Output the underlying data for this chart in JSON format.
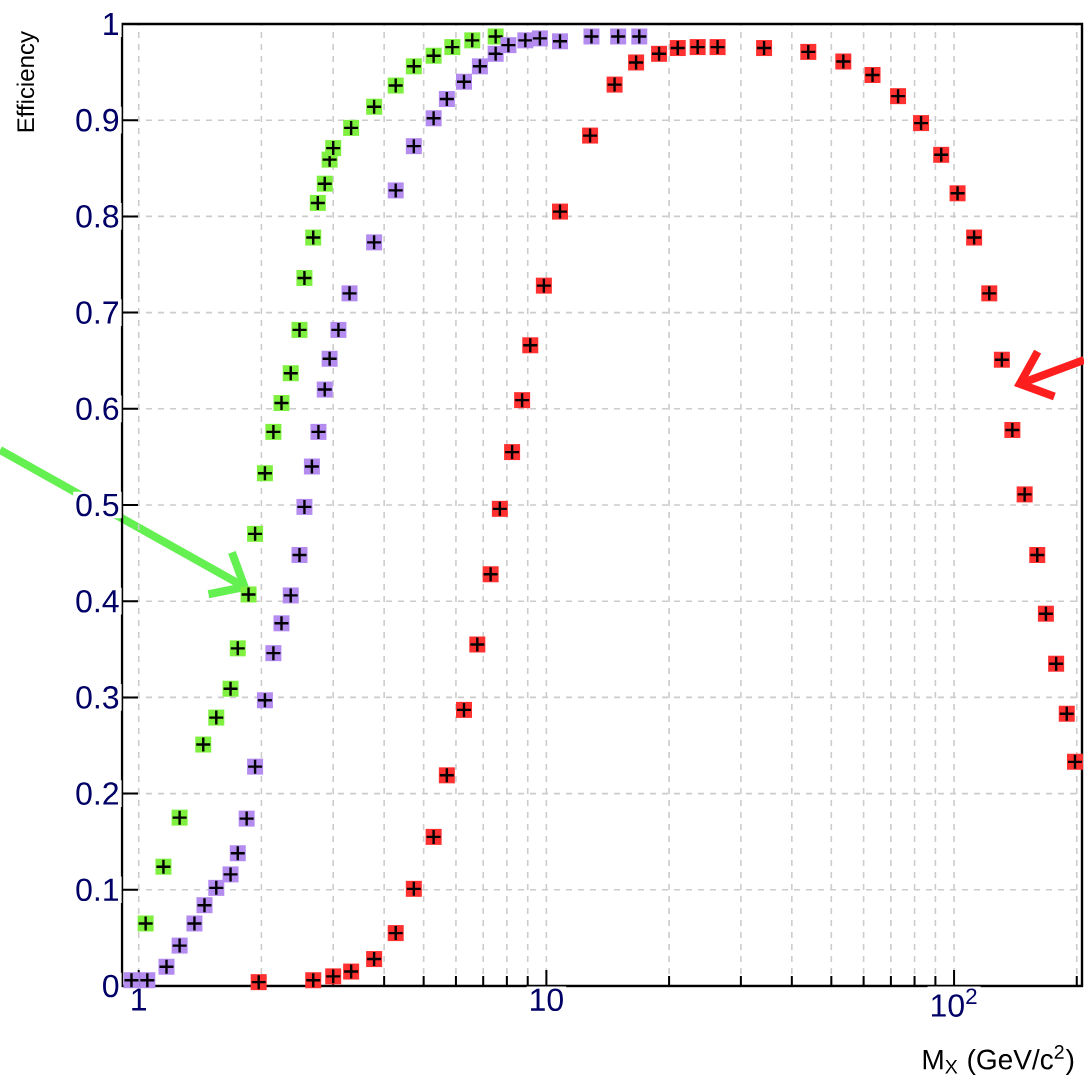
{
  "chart_data": {
    "type": "scatter",
    "xlabel": "M$_{X}$ (GeV/c$^{2}$)",
    "ylabel": "Efficiency",
    "log": "x",
    "grid": true,
    "marker": "square",
    "xlim": [
      0.91,
      206
    ],
    "ylim": [
      0,
      1
    ],
    "xticks": [
      1,
      {
        "value": 2,
        "label": null
      },
      {
        "value": 3,
        "label": null
      },
      {
        "value": 4,
        "label": null
      },
      {
        "value": 5,
        "label": null
      },
      {
        "value": 6,
        "label": null
      },
      {
        "value": 7,
        "label": null
      },
      {
        "value": 8,
        "label": null
      },
      {
        "value": 9,
        "label": null
      },
      10,
      {
        "value": 20,
        "label": null
      },
      {
        "value": 30,
        "label": null
      },
      {
        "value": 40,
        "label": null
      },
      {
        "value": 50,
        "label": null
      },
      {
        "value": 60,
        "label": null
      },
      {
        "value": 70,
        "label": null
      },
      {
        "value": 80,
        "label": null
      },
      {
        "value": 90,
        "label": null
      },
      {
        "value": 100,
        "label": "10$^{2}$"
      },
      {
        "value": 200,
        "label": null
      }
    ],
    "yticks": [
      0,
      0.1,
      0.2,
      0.3,
      0.4,
      0.5,
      0.6,
      0.7,
      0.8,
      0.9,
      1
    ],
    "series": [
      {
        "color": "#80f040",
        "x": [
          1.04,
          1.15,
          1.26,
          1.44,
          1.55,
          1.68,
          1.75,
          1.86,
          1.93,
          2.04,
          2.14,
          2.24,
          2.36,
          2.48,
          2.55,
          2.68,
          2.75,
          2.86,
          2.94,
          3.0,
          3.32,
          3.78,
          4.27,
          4.73,
          5.29,
          5.88,
          6.58,
          7.51
        ],
        "values": [
          0.065,
          0.124,
          0.175,
          0.251,
          0.279,
          0.309,
          0.351,
          0.407,
          0.47,
          0.533,
          0.576,
          0.606,
          0.637,
          0.682,
          0.736,
          0.778,
          0.814,
          0.834,
          0.859,
          0.871,
          0.892,
          0.914,
          0.936,
          0.956,
          0.967,
          0.976,
          0.983,
          0.987
        ]
      },
      {
        "color": "#b48cf0",
        "x": [
          0.96,
          1.05,
          1.17,
          1.26,
          1.37,
          1.45,
          1.55,
          1.68,
          1.75,
          1.84,
          1.93,
          2.04,
          2.14,
          2.24,
          2.36,
          2.48,
          2.55,
          2.66,
          2.76,
          2.86,
          2.94,
          3.09,
          3.29,
          3.78,
          4.27,
          4.73,
          5.29,
          5.7,
          6.28,
          6.87,
          7.51,
          8.07,
          8.88,
          9.64,
          10.8,
          12.9,
          15.0,
          16.9
        ],
        "values": [
          0.006,
          0.006,
          0.02,
          0.042,
          0.065,
          0.084,
          0.102,
          0.116,
          0.138,
          0.174,
          0.228,
          0.297,
          0.346,
          0.377,
          0.406,
          0.448,
          0.498,
          0.54,
          0.576,
          0.62,
          0.652,
          0.682,
          0.72,
          0.773,
          0.827,
          0.873,
          0.902,
          0.922,
          0.94,
          0.956,
          0.969,
          0.978,
          0.983,
          0.985,
          0.982,
          0.987,
          0.987,
          0.987
        ]
      },
      {
        "color": "#ff3030",
        "x": [
          1.97,
          2.68,
          3.0,
          3.32,
          3.78,
          4.27,
          4.73,
          5.29,
          5.7,
          6.28,
          6.77,
          7.3,
          7.69,
          8.24,
          8.72,
          9.13,
          9.86,
          10.8,
          12.8,
          14.7,
          16.6,
          18.9,
          21.0,
          23.5,
          26.3,
          34.2,
          43.9,
          53.5,
          63.1,
          72.9,
          83.0,
          93.0,
          102,
          112,
          122,
          131,
          139,
          149,
          160,
          168,
          178,
          189,
          198
        ],
        "values": [
          0.004,
          0.006,
          0.01,
          0.015,
          0.028,
          0.055,
          0.101,
          0.155,
          0.219,
          0.287,
          0.355,
          0.428,
          0.496,
          0.555,
          0.609,
          0.666,
          0.728,
          0.805,
          0.884,
          0.937,
          0.96,
          0.969,
          0.975,
          0.976,
          0.976,
          0.975,
          0.971,
          0.961,
          0.947,
          0.925,
          0.897,
          0.864,
          0.824,
          0.778,
          0.72,
          0.651,
          0.578,
          0.511,
          0.448,
          0.387,
          0.335,
          0.283,
          0.233
        ]
      }
    ]
  }
}
